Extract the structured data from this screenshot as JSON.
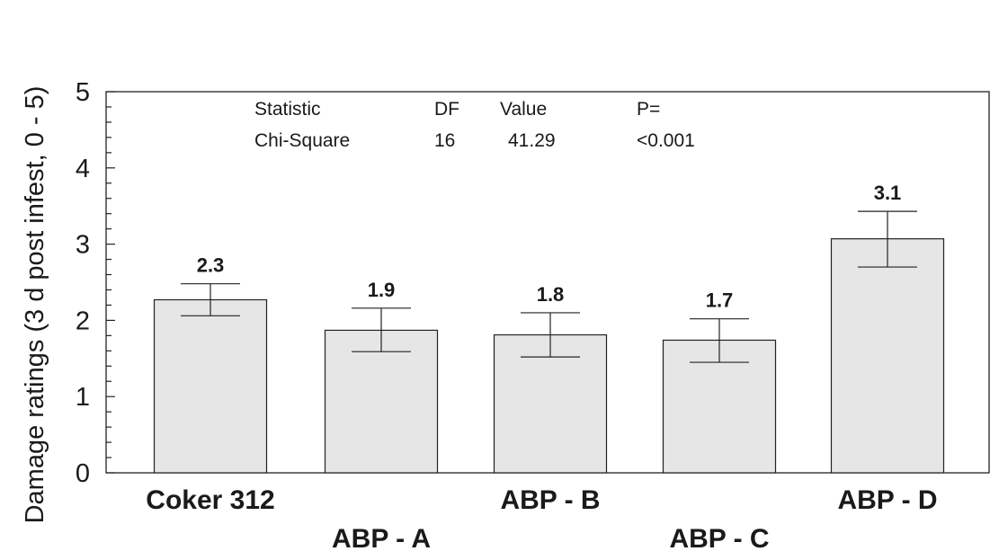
{
  "chart_data": {
    "type": "bar",
    "ylabel": "Damage ratings (3 d  post infest, 0 - 5)",
    "xlabel": "",
    "ylim": [
      0,
      5
    ],
    "yticks": [
      "0",
      "1",
      "2",
      "3",
      "4",
      "5"
    ],
    "categories": [
      "Coker 312",
      "ABP - A",
      "ABP - B",
      "ABP - C",
      "ABP - D"
    ],
    "values": [
      2.27,
      1.87,
      1.81,
      1.74,
      3.07
    ],
    "data_labels": [
      "2.3",
      "1.9",
      "1.8",
      "1.7",
      "3.1"
    ],
    "error_low": [
      2.06,
      1.59,
      1.52,
      1.45,
      2.7
    ],
    "error_high": [
      2.48,
      2.16,
      2.1,
      2.02,
      3.43
    ],
    "bar_color": "#e6e6e6",
    "stats_table": {
      "headers": [
        "Statistic",
        "DF",
        "Value",
        "P="
      ],
      "row": [
        "Chi-Square",
        "16",
        "41.29",
        "<0.001"
      ]
    }
  }
}
